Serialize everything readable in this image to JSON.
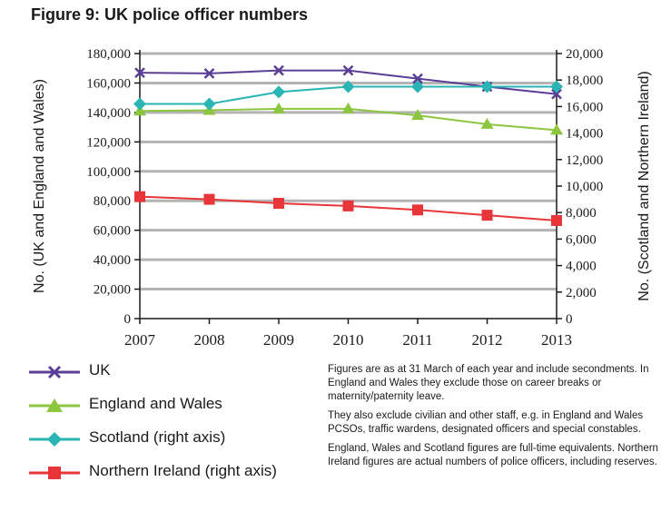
{
  "title": "Figure 9: UK police officer numbers",
  "chart_data": {
    "type": "line",
    "categories": [
      "2007",
      "2008",
      "2009",
      "2010",
      "2011",
      "2012",
      "2013"
    ],
    "left_axis": {
      "label": "No. (UK and England and Wales)",
      "ylim": [
        0,
        180000
      ],
      "ticks": [
        "0",
        "20,000",
        "40,000",
        "60,000",
        "80,000",
        "100,000",
        "120,000",
        "140,000",
        "160,000",
        "180,000"
      ]
    },
    "right_axis": {
      "label": "No. (Scotland and Northern Ireland)",
      "ylim": [
        0,
        20000
      ],
      "ticks": [
        "0",
        "2,000",
        "4,000",
        "6,000",
        "8,000",
        "10,000",
        "12,000",
        "14,000",
        "16,000",
        "18,000",
        "20,000"
      ]
    },
    "grid": true,
    "series": [
      {
        "name": "UK",
        "axis": "left",
        "marker": "x",
        "color": "#5b3e96",
        "values": [
          167000,
          166500,
          168500,
          168500,
          163000,
          157500,
          152500
        ]
      },
      {
        "name": "England and Wales",
        "axis": "left",
        "marker": "triangle",
        "color": "#8cc63f",
        "values": [
          141000,
          141500,
          142500,
          142500,
          138000,
          132000,
          128000
        ]
      },
      {
        "name": "Scotland (right axis)",
        "axis": "right",
        "marker": "diamond",
        "color": "#2ab5b5",
        "values": [
          16200,
          16200,
          17100,
          17500,
          17500,
          17500,
          17500
        ]
      },
      {
        "name": "Northern Ireland (right axis)",
        "axis": "right",
        "marker": "square",
        "color": "#e8353a",
        "values": [
          9200,
          9000,
          8700,
          8500,
          8200,
          7800,
          7400
        ]
      }
    ]
  },
  "legend": [
    {
      "label": "UK"
    },
    {
      "label": "England and Wales"
    },
    {
      "label": "Scotland (right axis)"
    },
    {
      "label": "Northern Ireland (right axis)"
    }
  ],
  "notes": [
    "Figures are as at 31 March of each year and include secondments. In England and Wales they exclude those on career breaks or maternity/paternity leave.",
    "They also exclude civilian and other staff, e.g. in England and Wales PCSOs, traffic wardens, designated officers and special constables.",
    "England, Wales and Scotland figures are full-time equivalents. Northern Ireland figures are actual numbers of police officers, including reserves."
  ]
}
